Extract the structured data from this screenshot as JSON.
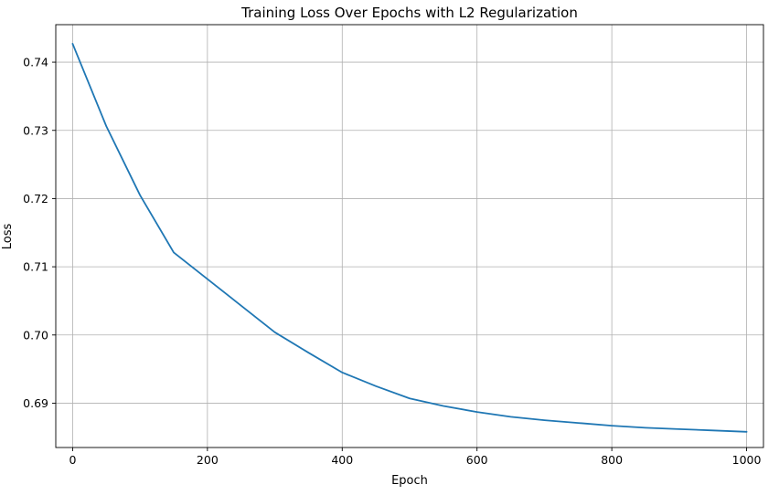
{
  "chart_data": {
    "type": "line",
    "title": "Training Loss Over Epochs with L2 Regularization",
    "xlabel": "Epoch",
    "ylabel": "Loss",
    "xlim": [
      -25,
      1025
    ],
    "ylim": [
      0.6835,
      0.7455
    ],
    "x_ticks": [
      0,
      200,
      400,
      600,
      800,
      1000
    ],
    "x_tick_labels": [
      "0",
      "200",
      "400",
      "600",
      "800",
      "1000"
    ],
    "y_ticks": [
      0.69,
      0.7,
      0.71,
      0.72,
      0.73,
      0.74
    ],
    "y_tick_labels": [
      "0.69",
      "0.70",
      "0.71",
      "0.72",
      "0.73",
      "0.74"
    ],
    "grid": true,
    "series": [
      {
        "color": "#1f77b4",
        "x": [
          0,
          50,
          100,
          150,
          200,
          250,
          300,
          350,
          400,
          450,
          500,
          550,
          600,
          650,
          700,
          750,
          800,
          850,
          900,
          950,
          1000
        ],
        "y": [
          0.7427,
          0.7306,
          0.7205,
          0.7121,
          0.7082,
          0.7043,
          0.7004,
          0.6974,
          0.6945,
          0.6925,
          0.6907,
          0.6896,
          0.6887,
          0.688,
          0.6875,
          0.6871,
          0.6867,
          0.6864,
          0.6862,
          0.686,
          0.6858
        ]
      }
    ]
  }
}
